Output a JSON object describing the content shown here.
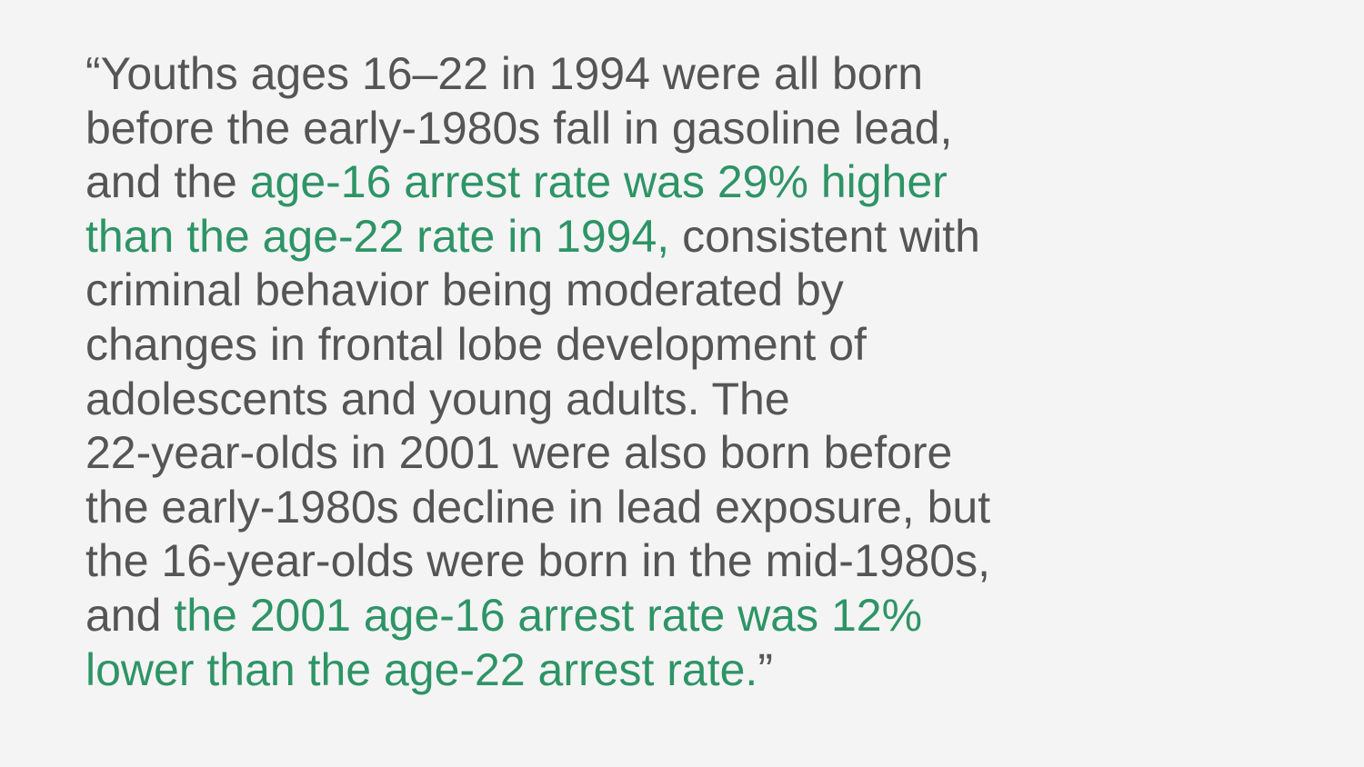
{
  "colors": {
    "background": "#f4f4f4",
    "text": "#555555",
    "highlight": "#2e9466"
  },
  "quote": {
    "l1": "“Youths ages 16–22 in 1994 were all born",
    "l2": "before the early-1980s fall in gasoline lead,",
    "l3a": "and the ",
    "l3b": "age-16 arrest rate was 29% higher",
    "l4a": "than the age-22 rate in 1994,",
    "l4b": " consistent with",
    "l5": "criminal behavior being moderated by",
    "l6": "changes in frontal lobe development of",
    "l7": "adolescents and young adults. The",
    "l8": "22-year-olds in 2001 were also born before",
    "l9": "the early-1980s decline in lead exposure, but",
    "l10": "the 16-year-olds were born in the mid-1980s,",
    "l11a": "and ",
    "l11b": "the 2001 age-16 arrest rate was 12%",
    "l12a": "lower than the age-22 arrest rate.",
    "l12b": "”"
  }
}
